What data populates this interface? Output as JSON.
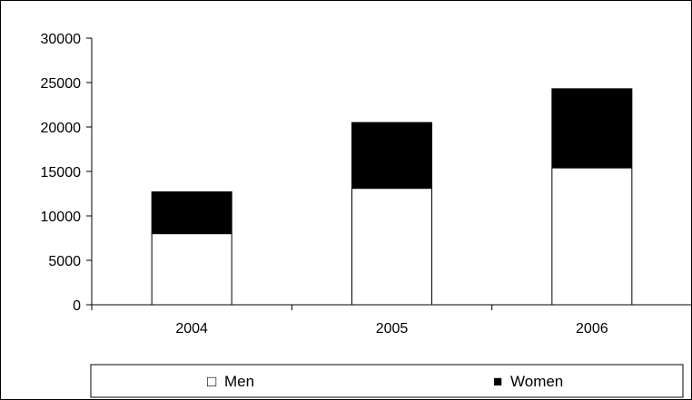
{
  "chart_data": {
    "type": "bar",
    "stacked": true,
    "categories": [
      "2004",
      "2005",
      "2006"
    ],
    "series": [
      {
        "name": "Men",
        "values": [
          8000,
          13100,
          15400
        ],
        "color": "#ffffff"
      },
      {
        "name": "Women",
        "values": [
          4700,
          7400,
          8900
        ],
        "color": "#000000"
      }
    ],
    "title": "",
    "xlabel": "",
    "ylabel": "",
    "ylim": [
      0,
      30000
    ],
    "yticks": [
      0,
      5000,
      10000,
      15000,
      20000,
      25000,
      30000
    ],
    "ytick_labels": [
      "0",
      "5000",
      "10000",
      "15000",
      "20000",
      "25000",
      "30000"
    ],
    "grid": false,
    "legend": {
      "position": "bottom",
      "items": [
        {
          "symbol": "□",
          "label": "Men"
        },
        {
          "symbol": "■",
          "label": "Women"
        }
      ]
    }
  }
}
